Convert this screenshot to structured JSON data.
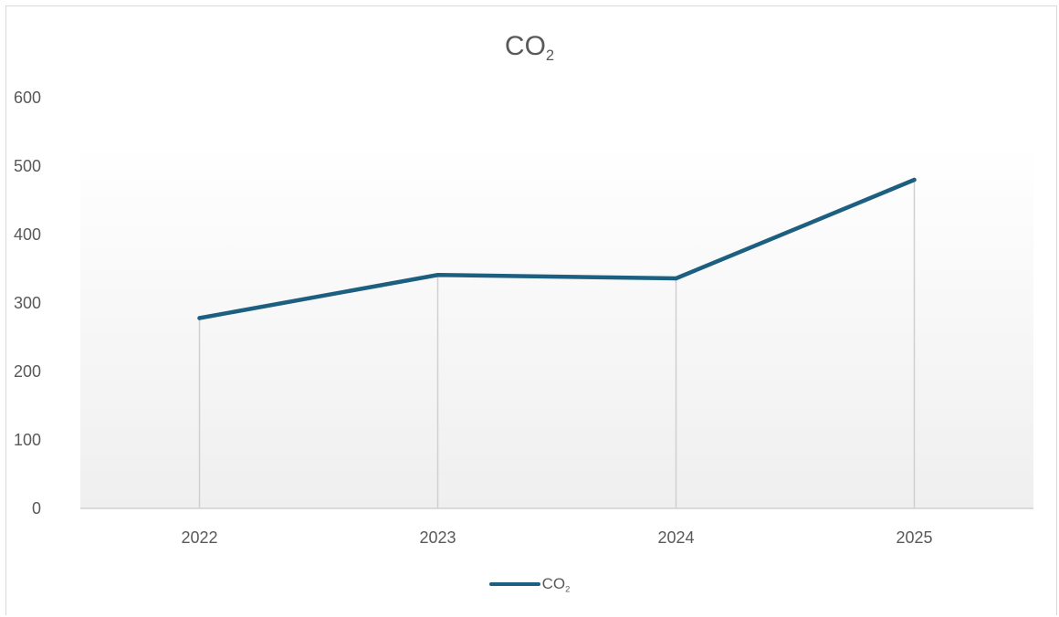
{
  "colors": {
    "series": "#1d5f80",
    "axis_text": "#595959",
    "drop_lines": "#d0d0d0",
    "plot_gradient_top": "#ffffff",
    "plot_gradient_bottom": "#efefef"
  },
  "chart_data": {
    "type": "line",
    "title": "CO",
    "title_subscript": "2",
    "categories": [
      "2022",
      "2023",
      "2024",
      "2025"
    ],
    "series": [
      {
        "name": "CO",
        "name_subscript": "2",
        "values": [
          278,
          341,
          336,
          480
        ]
      }
    ],
    "yticks": [
      "0",
      "100",
      "200",
      "300",
      "400",
      "500",
      "600"
    ],
    "ylim": [
      0,
      600
    ],
    "drop_lines": true,
    "grid": false,
    "legend_position": "bottom"
  }
}
